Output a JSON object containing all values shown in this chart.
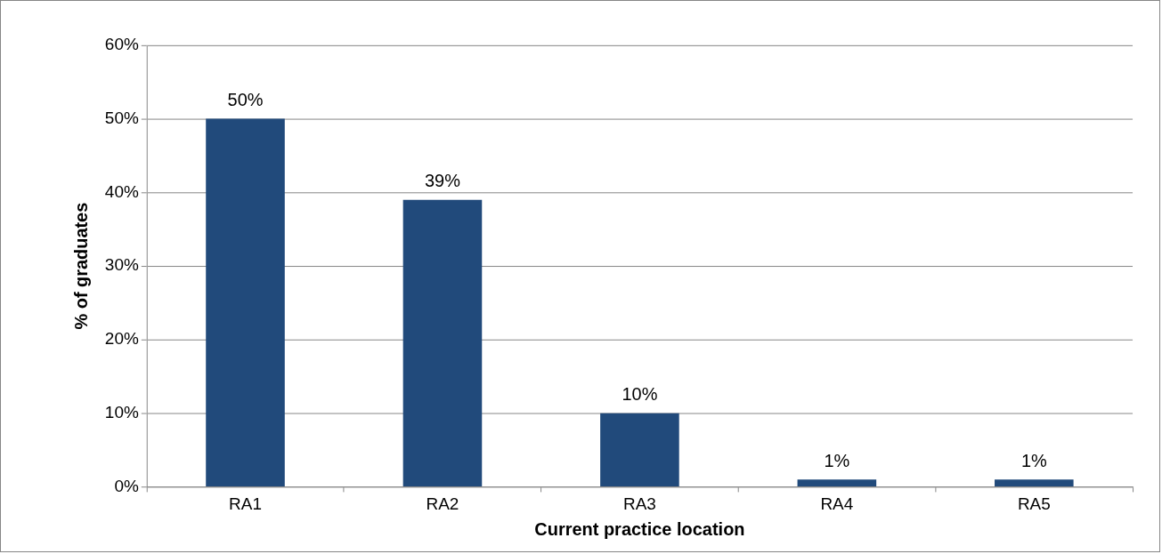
{
  "chart_data": {
    "type": "bar",
    "xlabel": "Current practice location",
    "ylabel": "% of graduates",
    "categories": [
      "RA1",
      "RA2",
      "RA3",
      "RA4",
      "RA5"
    ],
    "values": [
      50,
      39,
      10,
      1,
      1
    ],
    "value_labels": [
      "50%",
      "39%",
      "10%",
      "1%",
      "1%"
    ],
    "color": "#214a7b",
    "ylim": [
      0,
      60
    ],
    "yticks": [
      {
        "value": 0,
        "label": "0%"
      },
      {
        "value": 10,
        "label": "10%"
      },
      {
        "value": 20,
        "label": "20%"
      },
      {
        "value": 30,
        "label": "30%"
      },
      {
        "value": 40,
        "label": "40%"
      },
      {
        "value": 50,
        "label": "50%"
      },
      {
        "value": 60,
        "label": "60%"
      }
    ],
    "grid": "y",
    "legend": false
  }
}
